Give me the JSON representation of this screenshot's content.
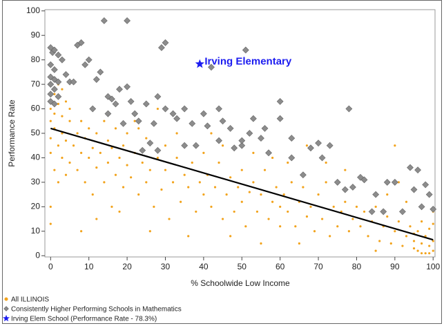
{
  "chart_data": {
    "type": "scatter",
    "x_label": "% Schoolwide Low Income",
    "y_label": "Performance Rate",
    "xlim": [
      -1.5,
      100.5
    ],
    "ylim": [
      -0.5,
      100.5
    ],
    "xticks": [
      0,
      10,
      20,
      30,
      40,
      50,
      60,
      70,
      80,
      90,
      100
    ],
    "yticks": [
      0,
      10,
      20,
      30,
      40,
      50,
      60,
      70,
      80,
      90,
      100
    ],
    "annotation": "Irving Elementary",
    "series": [
      {
        "name": "All ILLINOIS",
        "color": "#f2a31c",
        "marker": "dot",
        "x": [
          0,
          0,
          0,
          1,
          1,
          1,
          2,
          2,
          2,
          3,
          3,
          3,
          4,
          4,
          5,
          5,
          0,
          1,
          0,
          0,
          2,
          4,
          5,
          3,
          6,
          7,
          7,
          8,
          8,
          9,
          9,
          10,
          10,
          11,
          11,
          12,
          12,
          13,
          14,
          14,
          15,
          15,
          16,
          16,
          17,
          17,
          18,
          19,
          19,
          20,
          20,
          8,
          12,
          18,
          21,
          22,
          23,
          24,
          25,
          25,
          26,
          27,
          28,
          29,
          30,
          30,
          31,
          32,
          33,
          34,
          35,
          36,
          37,
          38,
          39,
          40,
          40,
          22,
          26,
          33,
          36,
          28,
          23,
          41,
          42,
          43,
          44,
          45,
          46,
          47,
          48,
          49,
          50,
          50,
          51,
          52,
          53,
          54,
          55,
          56,
          57,
          58,
          59,
          60,
          60,
          45,
          53,
          58,
          47,
          42,
          55,
          61,
          62,
          63,
          64,
          65,
          66,
          67,
          68,
          69,
          70,
          71,
          72,
          73,
          74,
          75,
          76,
          77,
          78,
          79,
          80,
          62,
          67,
          72,
          77,
          65,
          81,
          82,
          83,
          84,
          85,
          86,
          87,
          88,
          89,
          90,
          91,
          92,
          93,
          94,
          95,
          95,
          96,
          96,
          97,
          97,
          98,
          98,
          99,
          99,
          100,
          100,
          100,
          99,
          97,
          95,
          93,
          90,
          88,
          91,
          85,
          100
        ],
        "values": [
          55,
          60,
          48,
          66,
          58,
          52,
          62,
          45,
          70,
          50,
          57,
          40,
          63,
          47,
          55,
          38,
          42,
          35,
          13,
          20,
          30,
          33,
          60,
          68,
          45,
          50,
          35,
          42,
          55,
          30,
          48,
          40,
          52,
          25,
          44,
          36,
          50,
          42,
          30,
          55,
          38,
          47,
          20,
          44,
          33,
          52,
          40,
          28,
          45,
          37,
          50,
          10,
          15,
          18,
          32,
          42,
          25,
          38,
          30,
          48,
          35,
          20,
          40,
          27,
          35,
          45,
          15,
          30,
          40,
          22,
          33,
          28,
          38,
          18,
          30,
          25,
          42,
          55,
          10,
          50,
          8,
          60,
          52,
          33,
          20,
          28,
          38,
          15,
          25,
          32,
          18,
          28,
          22,
          35,
          12,
          26,
          30,
          18,
          25,
          35,
          15,
          22,
          28,
          20,
          12,
          45,
          42,
          40,
          8,
          50,
          5,
          25,
          18,
          30,
          12,
          22,
          28,
          16,
          20,
          10,
          25,
          15,
          30,
          8,
          20,
          12,
          18,
          22,
          10,
          15,
          20,
          38,
          45,
          38,
          35,
          5,
          12,
          18,
          8,
          14,
          20,
          6,
          12,
          16,
          5,
          10,
          14,
          4,
          8,
          12,
          3,
          6,
          10,
          2,
          5,
          14,
          1,
          8,
          4,
          11,
          2,
          6,
          13,
          1,
          1,
          9,
          22,
          45,
          25,
          30,
          2,
          18
        ]
      },
      {
        "name": "Consistently Higher Performing Schools in Mathematics",
        "color": "#8c8c8c",
        "marker": "diamond",
        "x": [
          0,
          0.5,
          1,
          2,
          0,
          1,
          0,
          1,
          2,
          0,
          1,
          0,
          2,
          0,
          1,
          3,
          4,
          5,
          6,
          7,
          8,
          9,
          10,
          12,
          13,
          14,
          15,
          16,
          17,
          18,
          20,
          20,
          21,
          22,
          23,
          25,
          27,
          28,
          29,
          30,
          30,
          32,
          33,
          35,
          37,
          38,
          40,
          41,
          42,
          44,
          45,
          47,
          50,
          51,
          52,
          53,
          55,
          56,
          57,
          60,
          60,
          63,
          66,
          68,
          70,
          71,
          73,
          75,
          77,
          78,
          79,
          81,
          82,
          84,
          85,
          87,
          88,
          90,
          92,
          94,
          95,
          96,
          97,
          98,
          99,
          100,
          24,
          26,
          19,
          11,
          15,
          48,
          35,
          63,
          44,
          28,
          50
        ],
        "values": [
          85,
          83,
          84,
          82,
          78,
          76,
          73,
          72,
          71,
          70,
          68,
          66,
          65,
          63,
          62,
          80,
          74,
          71,
          71,
          86,
          87,
          78,
          80,
          72,
          75,
          96,
          65,
          64,
          62,
          68,
          96,
          69,
          63,
          58,
          55,
          62,
          54,
          65,
          85,
          87,
          60,
          58,
          56,
          60,
          54,
          45,
          58,
          53,
          77,
          60,
          55,
          52,
          45,
          84,
          50,
          56,
          48,
          52,
          42,
          63,
          56,
          48,
          33,
          44,
          46,
          40,
          45,
          30,
          27,
          60,
          28,
          32,
          31,
          18,
          25,
          18,
          30,
          30,
          18,
          36,
          27,
          35,
          20,
          29,
          25,
          19,
          43,
          46,
          54,
          60,
          58,
          44,
          45,
          40,
          47,
          43,
          47
        ]
      },
      {
        "name": "Irving Elem School (Performance Rate - 78.3%)",
        "color": "#1c1cf0",
        "marker": "star",
        "x": [
          39
        ],
        "values": [
          78.3
        ]
      }
    ],
    "trendline": {
      "color": "#000000",
      "x": [
        0,
        100
      ],
      "values": [
        52,
        6.5
      ]
    }
  }
}
